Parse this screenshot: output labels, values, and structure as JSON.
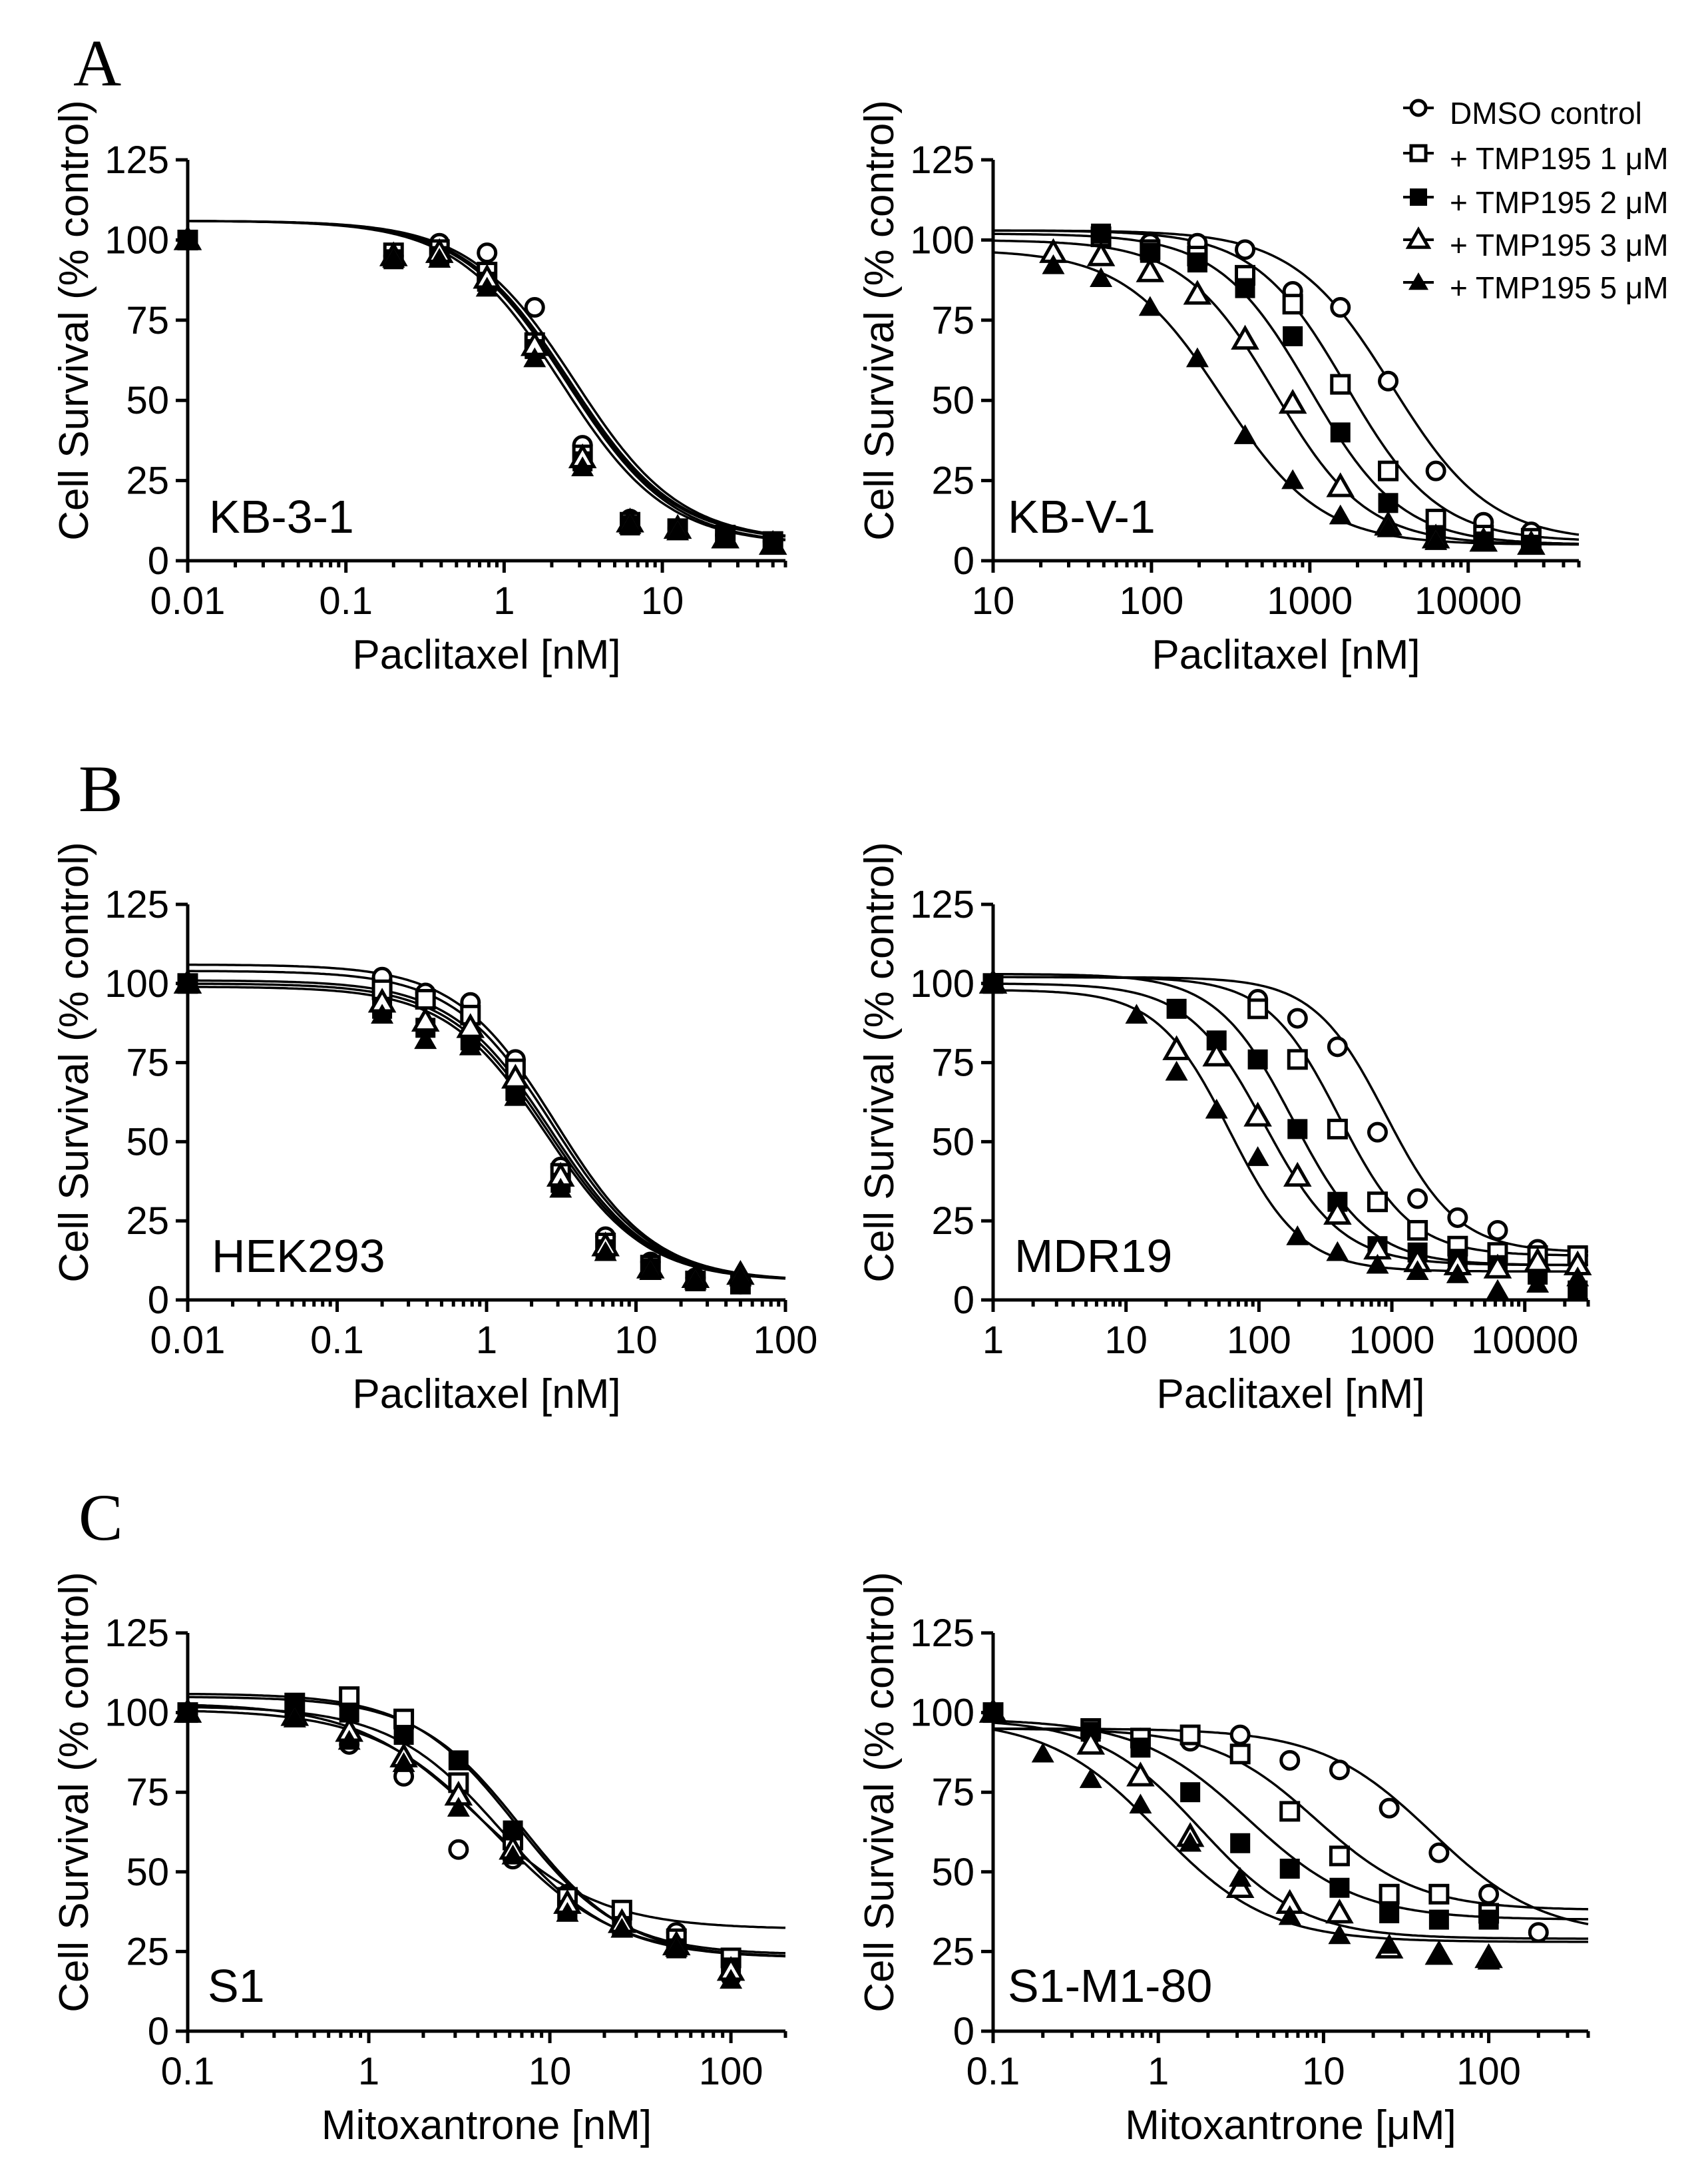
{
  "panel_letters": {
    "a": "A",
    "b": "B",
    "c": "C"
  },
  "legend": {
    "entries": [
      {
        "label": "DMSO control",
        "marker": "open-circle"
      },
      {
        "label": "+ TMP195 1 μM",
        "marker": "open-square"
      },
      {
        "label": "+ TMP195 2 μM",
        "marker": "filled-square"
      },
      {
        "label": "+ TMP195 3 μM",
        "marker": "open-triangle"
      },
      {
        "label": "+ TMP195 5 μM",
        "marker": "filled-triangle"
      }
    ]
  },
  "chart_data": [
    {
      "id": "kb31",
      "type": "scatter",
      "title": "KB-3-1",
      "xlabel": "Paclitaxel [nM]",
      "ylabel": "Cell Survival (% control)",
      "xscale": "log",
      "xlim": [
        0.01,
        60
      ],
      "ylim": [
        0,
        125
      ],
      "xticks": [
        0.01,
        0.1,
        1,
        10
      ],
      "xtick_labels": [
        "0.01",
        "0.1",
        "1",
        "10"
      ],
      "yticks": [
        0,
        25,
        50,
        75,
        100,
        125
      ],
      "ytick_labels": [
        "0",
        "25",
        "50",
        "75",
        "100",
        "125"
      ],
      "x": [
        0.01,
        0.2,
        0.39,
        0.78,
        1.56,
        3.13,
        6.25,
        12.5,
        25,
        50
      ],
      "series": [
        {
          "name": "DMSO control",
          "marker": "open-circle",
          "values": [
            100,
            95,
            99,
            96,
            79,
            36,
            13,
            10,
            8,
            6
          ],
          "fit": {
            "top": 106,
            "bottom": 6,
            "ic50": 2.8,
            "hill": 1.3
          }
        },
        {
          "name": "+ TMP195 1 μM",
          "marker": "open-square",
          "values": [
            100,
            96,
            97,
            90,
            68,
            33,
            12,
            10,
            8,
            6
          ],
          "fit": {
            "top": 106,
            "bottom": 6,
            "ic50": 2.6,
            "hill": 1.3
          }
        },
        {
          "name": "+ TMP195 2 μM",
          "marker": "filled-square",
          "values": [
            100,
            94,
            95,
            87,
            66,
            31,
            11,
            10,
            8,
            6
          ],
          "fit": {
            "top": 106,
            "bottom": 6,
            "ic50": 2.5,
            "hill": 1.3
          }
        },
        {
          "name": "+ TMP195 3 μM",
          "marker": "open-triangle",
          "values": [
            100,
            95,
            96,
            88,
            67,
            32,
            12,
            10,
            7,
            5
          ],
          "fit": {
            "top": 106,
            "bottom": 5,
            "ic50": 2.5,
            "hill": 1.3
          }
        },
        {
          "name": "+ TMP195 5 μM",
          "marker": "filled-triangle",
          "values": [
            100,
            94,
            94,
            85,
            63,
            29,
            11,
            9,
            7,
            5
          ],
          "fit": {
            "top": 106,
            "bottom": 5,
            "ic50": 2.3,
            "hill": 1.3
          }
        }
      ]
    },
    {
      "id": "kbv1",
      "type": "scatter",
      "title": "KB-V-1",
      "xlabel": "Paclitaxel [nM]",
      "ylabel": "Cell Survival (% control)",
      "xscale": "log",
      "xlim": [
        10,
        50000
      ],
      "ylim": [
        0,
        125
      ],
      "xticks": [
        10,
        100,
        1000,
        10000
      ],
      "xtick_labels": [
        "10",
        "100",
        "1000",
        "10000"
      ],
      "yticks": [
        0,
        25,
        50,
        75,
        100,
        125
      ],
      "ytick_labels": [
        "0",
        "25",
        "50",
        "75",
        "100",
        "125"
      ],
      "x": [
        24,
        48,
        98,
        195,
        390,
        780,
        1560,
        3125,
        6250,
        12500,
        25000
      ],
      "series": [
        {
          "name": "DMSO control",
          "marker": "open-circle",
          "values": [
            null,
            101,
            99,
            99,
            97,
            84,
            79,
            56,
            28,
            12,
            9
          ],
          "fit": {
            "top": 103,
            "bottom": 6,
            "ic50": 3300,
            "hill": 1.4
          }
        },
        {
          "name": "+ TMP195 1 μM",
          "marker": "open-square",
          "values": [
            null,
            101,
            97,
            95,
            89,
            80,
            55,
            28,
            13,
            8,
            7
          ],
          "fit": {
            "top": 103,
            "bottom": 6,
            "ic50": 1700,
            "hill": 1.5
          }
        },
        {
          "name": "+ TMP195 2 μM",
          "marker": "filled-square",
          "values": [
            null,
            102,
            96,
            93,
            85,
            70,
            40,
            18,
            8,
            6,
            5
          ],
          "fit": {
            "top": 102,
            "bottom": 5,
            "ic50": 1000,
            "hill": 1.5
          }
        },
        {
          "name": "+ TMP195 3 μM",
          "marker": "open-triangle",
          "values": [
            96,
            95,
            90,
            83,
            69,
            49,
            23,
            11,
            7,
            6,
            5
          ],
          "fit": {
            "top": 100,
            "bottom": 5,
            "ic50": 600,
            "hill": 1.5
          }
        },
        {
          "name": "+ TMP195 5 μM",
          "marker": "filled-triangle",
          "values": [
            92,
            88,
            79,
            63,
            39,
            25,
            14,
            10,
            6,
            6,
            5
          ],
          "fit": {
            "top": 97,
            "bottom": 5,
            "ic50": 280,
            "hill": 1.4
          }
        }
      ]
    },
    {
      "id": "hek293",
      "type": "scatter",
      "title": "HEK293",
      "xlabel": "Paclitaxel [nM]",
      "ylabel": "Cell Survival (% control)",
      "xscale": "log",
      "xlim": [
        0.01,
        100
      ],
      "ylim": [
        0,
        125
      ],
      "xticks": [
        0.01,
        0.1,
        1,
        10,
        100
      ],
      "xtick_labels": [
        "0.01",
        "0.1",
        "1",
        "10",
        "100"
      ],
      "yticks": [
        0,
        25,
        50,
        75,
        100,
        125
      ],
      "ytick_labels": [
        "0",
        "25",
        "50",
        "75",
        "100",
        "125"
      ],
      "x": [
        0.01,
        0.2,
        0.39,
        0.78,
        1.56,
        3.13,
        6.25,
        12.5,
        25,
        50
      ],
      "series": [
        {
          "name": "DMSO control",
          "marker": "open-circle",
          "values": [
            100,
            102,
            97,
            94,
            76,
            42,
            20,
            12,
            7,
            5
          ],
          "fit": {
            "top": 106,
            "bottom": 6,
            "ic50": 2.9,
            "hill": 1.3
          }
        },
        {
          "name": "+ TMP195 1 μM",
          "marker": "open-square",
          "values": [
            100,
            98,
            95,
            90,
            73,
            40,
            18,
            11,
            6,
            5
          ],
          "fit": {
            "top": 104,
            "bottom": 6,
            "ic50": 2.8,
            "hill": 1.3
          }
        },
        {
          "name": "+ TMP195 2 μM",
          "marker": "filled-square",
          "values": [
            100,
            92,
            86,
            82,
            66,
            37,
            16,
            10,
            6,
            5
          ],
          "fit": {
            "top": 100,
            "bottom": 6,
            "ic50": 2.6,
            "hill": 1.3
          }
        },
        {
          "name": "+ TMP195 3 μM",
          "marker": "open-triangle",
          "values": [
            100,
            94,
            88,
            86,
            70,
            39,
            17,
            10,
            7,
            8
          ],
          "fit": {
            "top": 101,
            "bottom": 6,
            "ic50": 2.7,
            "hill": 1.3
          }
        },
        {
          "name": "+ TMP195 5 μM",
          "marker": "filled-triangle",
          "values": [
            100,
            90,
            82,
            80,
            64,
            35,
            15,
            9,
            6,
            7
          ],
          "fit": {
            "top": 99,
            "bottom": 6,
            "ic50": 2.5,
            "hill": 1.3
          }
        }
      ]
    },
    {
      "id": "mdr19",
      "type": "scatter",
      "title": "MDR19",
      "xlabel": "Paclitaxel [nM]",
      "ylabel": "Cell Survival (% control)",
      "xscale": "log",
      "xlim": [
        1,
        30000
      ],
      "ylim": [
        0,
        125
      ],
      "xticks": [
        1,
        10,
        100,
        1000,
        10000
      ],
      "xtick_labels": [
        "1",
        "10",
        "100",
        "1000",
        "10000"
      ],
      "yticks": [
        0,
        25,
        50,
        75,
        100,
        125
      ],
      "ytick_labels": [
        "0",
        "25",
        "50",
        "75",
        "100",
        "125"
      ],
      "x": [
        1,
        12,
        24,
        48,
        98,
        195,
        390,
        780,
        1560,
        3125,
        6250,
        12500,
        25000
      ],
      "series": [
        {
          "name": "DMSO control",
          "marker": "open-circle",
          "values": [
            100,
            null,
            null,
            null,
            95,
            89,
            80,
            53,
            32,
            26,
            22,
            16,
            12
          ],
          "fit": {
            "top": 102,
            "bottom": 15,
            "ic50": 900,
            "hill": 1.6
          }
        },
        {
          "name": "+ TMP195 1 μM",
          "marker": "open-square",
          "values": [
            100,
            null,
            null,
            null,
            92,
            76,
            54,
            31,
            22,
            17,
            15,
            14,
            14
          ],
          "fit": {
            "top": 102,
            "bottom": 14,
            "ic50": 400,
            "hill": 1.6
          }
        },
        {
          "name": "+ TMP195 2 μM",
          "marker": "filled-square",
          "values": [
            100,
            null,
            92,
            82,
            76,
            54,
            31,
            17,
            15,
            13,
            11,
            8,
            3
          ],
          "fit": {
            "top": 103,
            "bottom": 11,
            "ic50": 180,
            "hill": 1.5
          }
        },
        {
          "name": "+ TMP195 3 μM",
          "marker": "open-triangle",
          "values": [
            100,
            null,
            79,
            77,
            58,
            39,
            27,
            16,
            12,
            11,
            10,
            12,
            11
          ],
          "fit": {
            "top": 100,
            "bottom": 11,
            "ic50": 110,
            "hill": 1.5
          }
        },
        {
          "name": "+ TMP195 5 μM",
          "marker": "filled-triangle",
          "values": [
            100,
            90,
            72,
            60,
            45,
            20,
            15,
            11,
            9,
            8,
            3,
            5,
            7
          ],
          "fit": {
            "top": 98,
            "bottom": 9,
            "ic50": 60,
            "hill": 1.6
          }
        }
      ]
    },
    {
      "id": "s1",
      "type": "scatter",
      "title": "S1",
      "xlabel": "Mitoxantrone [nM]",
      "ylabel": "Cell Survival (% control)",
      "xscale": "log",
      "xlim": [
        0.1,
        200
      ],
      "ylim": [
        0,
        125
      ],
      "xticks": [
        0.1,
        1,
        10,
        100
      ],
      "xtick_labels": [
        "0.1",
        "1",
        "10",
        "100"
      ],
      "yticks": [
        0,
        25,
        50,
        75,
        100,
        125
      ],
      "ytick_labels": [
        "0",
        "25",
        "50",
        "75",
        "100",
        "125"
      ],
      "x": [
        0.1,
        0.39,
        0.78,
        1.56,
        3.13,
        6.25,
        12.5,
        25,
        50,
        100
      ],
      "series": [
        {
          "name": "DMSO control",
          "marker": "open-circle",
          "values": [
            100,
            99,
            90,
            80,
            57,
            54,
            43,
            37,
            31,
            17
          ],
          "fit": {
            "top": 103,
            "bottom": 32,
            "ic50": 4.0,
            "hill": 1.3
          }
        },
        {
          "name": "+ TMP195 1 μM",
          "marker": "open-square",
          "values": [
            100,
            103,
            105,
            98,
            78,
            60,
            42,
            38,
            29,
            23
          ],
          "fit": {
            "top": 106,
            "bottom": 24,
            "ic50": 6.5,
            "hill": 1.5
          }
        },
        {
          "name": "+ TMP195 2 μM",
          "marker": "filled-square",
          "values": [
            100,
            103,
            100,
            93,
            85,
            63,
            38,
            33,
            26,
            20
          ],
          "fit": {
            "top": 105,
            "bottom": 23,
            "ic50": 7.0,
            "hill": 1.5
          }
        },
        {
          "name": "+ TMP195 3 μM",
          "marker": "open-triangle",
          "values": [
            100,
            99,
            94,
            86,
            74,
            57,
            40,
            34,
            27,
            19
          ],
          "fit": {
            "top": 102,
            "bottom": 23,
            "ic50": 5.5,
            "hill": 1.4
          }
        },
        {
          "name": "+ TMP195 5 μM",
          "marker": "filled-triangle",
          "values": [
            100,
            98,
            91,
            84,
            70,
            55,
            37,
            32,
            26,
            16
          ],
          "fit": {
            "top": 101,
            "bottom": 23,
            "ic50": 5.0,
            "hill": 1.3
          }
        }
      ]
    },
    {
      "id": "s1m180",
      "type": "scatter",
      "title": "S1-M1-80",
      "xlabel": "Mitoxantrone [μM]",
      "ylabel": "Cell Survival (% control)",
      "xscale": "log",
      "xlim": [
        0.1,
        400
      ],
      "ylim": [
        0,
        125
      ],
      "xticks": [
        0.1,
        1,
        10,
        100
      ],
      "xtick_labels": [
        "0.1",
        "1",
        "10",
        "100"
      ],
      "yticks": [
        0,
        25,
        50,
        75,
        100,
        125
      ],
      "ytick_labels": [
        "0",
        "25",
        "50",
        "75",
        "100",
        "125"
      ],
      "x": [
        0.1,
        0.2,
        0.39,
        0.78,
        1.56,
        3.13,
        6.25,
        12.5,
        25,
        50,
        100,
        200
      ],
      "series": [
        {
          "name": "DMSO control",
          "marker": "open-circle",
          "values": [
            100,
            null,
            93,
            92,
            91,
            93,
            85,
            82,
            70,
            56,
            43,
            31
          ],
          "fit": {
            "top": 95,
            "bottom": 30,
            "ic50": 45,
            "hill": 1.3
          }
        },
        {
          "name": "+ TMP195 1 μM",
          "marker": "open-square",
          "values": [
            100,
            null,
            95,
            92,
            93,
            87,
            69,
            55,
            43,
            43,
            37,
            null
          ],
          "fit": {
            "top": 95,
            "bottom": 38,
            "ic50": 9,
            "hill": 1.4
          }
        },
        {
          "name": "+ TMP195 2 μM",
          "marker": "filled-square",
          "values": [
            100,
            null,
            94,
            89,
            75,
            59,
            51,
            45,
            37,
            35,
            35,
            null
          ],
          "fit": {
            "top": 98,
            "bottom": 35,
            "ic50": 3.5,
            "hill": 1.3
          }
        },
        {
          "name": "+ TMP195 3 μM",
          "marker": "open-triangle",
          "values": [
            100,
            null,
            90,
            80,
            61,
            45,
            40,
            37,
            26,
            24,
            23,
            null
          ],
          "fit": {
            "top": 98,
            "bottom": 29,
            "ic50": 1.8,
            "hill": 1.4
          }
        },
        {
          "name": "+ TMP195 5 μM",
          "marker": "filled-triangle",
          "values": [
            100,
            87,
            79,
            71,
            59,
            48,
            36,
            30,
            27,
            24,
            22,
            null
          ],
          "fit": {
            "top": 98,
            "bottom": 28,
            "ic50": 1.0,
            "hill": 1.3
          }
        }
      ]
    }
  ]
}
